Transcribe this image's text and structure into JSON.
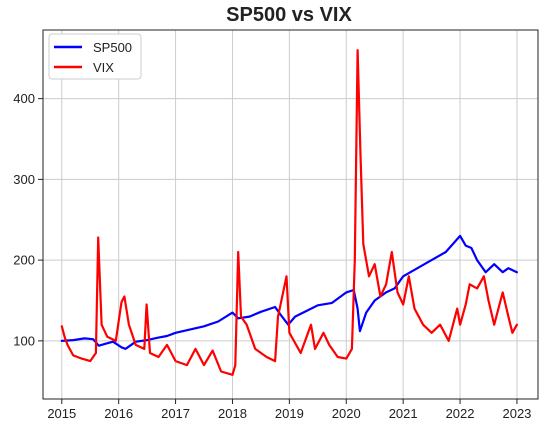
{
  "chart_data": {
    "type": "line",
    "title": "SP500 vs VIX",
    "xlabel": "",
    "ylabel": "",
    "xlim": [
      2014.67,
      2023.37
    ],
    "ylim": [
      28,
      485
    ],
    "x_ticks": [
      "2015",
      "2016",
      "2017",
      "2018",
      "2019",
      "2020",
      "2021",
      "2022",
      "2023"
    ],
    "y_ticks": [
      "100",
      "200",
      "300",
      "400"
    ],
    "grid": true,
    "legend_position": "top-left",
    "series": [
      {
        "name": "SP500",
        "color": "#0000ff",
        "points": [
          [
            2015.0,
            100
          ],
          [
            2015.2,
            101
          ],
          [
            2015.4,
            103
          ],
          [
            2015.55,
            102
          ],
          [
            2015.65,
            94
          ],
          [
            2015.75,
            96
          ],
          [
            2015.9,
            99
          ],
          [
            2016.05,
            92
          ],
          [
            2016.12,
            90
          ],
          [
            2016.3,
            99
          ],
          [
            2016.5,
            101
          ],
          [
            2016.7,
            104
          ],
          [
            2016.85,
            106
          ],
          [
            2017.0,
            110
          ],
          [
            2017.25,
            114
          ],
          [
            2017.5,
            118
          ],
          [
            2017.75,
            124
          ],
          [
            2018.0,
            135
          ],
          [
            2018.1,
            128
          ],
          [
            2018.3,
            130
          ],
          [
            2018.5,
            136
          ],
          [
            2018.75,
            142
          ],
          [
            2018.85,
            132
          ],
          [
            2018.98,
            120
          ],
          [
            2019.1,
            130
          ],
          [
            2019.3,
            137
          ],
          [
            2019.5,
            144
          ],
          [
            2019.75,
            147
          ],
          [
            2020.0,
            160
          ],
          [
            2020.13,
            163
          ],
          [
            2020.2,
            140
          ],
          [
            2020.24,
            112
          ],
          [
            2020.35,
            135
          ],
          [
            2020.5,
            150
          ],
          [
            2020.7,
            160
          ],
          [
            2020.85,
            165
          ],
          [
            2021.0,
            180
          ],
          [
            2021.25,
            190
          ],
          [
            2021.5,
            200
          ],
          [
            2021.75,
            210
          ],
          [
            2022.0,
            230
          ],
          [
            2022.1,
            218
          ],
          [
            2022.2,
            215
          ],
          [
            2022.3,
            200
          ],
          [
            2022.45,
            185
          ],
          [
            2022.6,
            195
          ],
          [
            2022.75,
            185
          ],
          [
            2022.85,
            190
          ],
          [
            2023.0,
            185
          ]
        ]
      },
      {
        "name": "VIX",
        "color": "#ff0000",
        "points": [
          [
            2015.0,
            118
          ],
          [
            2015.05,
            105
          ],
          [
            2015.1,
            95
          ],
          [
            2015.2,
            82
          ],
          [
            2015.35,
            78
          ],
          [
            2015.5,
            75
          ],
          [
            2015.6,
            85
          ],
          [
            2015.64,
            228
          ],
          [
            2015.7,
            120
          ],
          [
            2015.8,
            105
          ],
          [
            2015.95,
            100
          ],
          [
            2016.05,
            148
          ],
          [
            2016.1,
            155
          ],
          [
            2016.18,
            120
          ],
          [
            2016.3,
            95
          ],
          [
            2016.45,
            90
          ],
          [
            2016.49,
            145
          ],
          [
            2016.55,
            85
          ],
          [
            2016.7,
            80
          ],
          [
            2016.85,
            95
          ],
          [
            2017.0,
            75
          ],
          [
            2017.2,
            70
          ],
          [
            2017.35,
            90
          ],
          [
            2017.5,
            70
          ],
          [
            2017.65,
            88
          ],
          [
            2017.8,
            62
          ],
          [
            2018.0,
            58
          ],
          [
            2018.05,
            70
          ],
          [
            2018.1,
            210
          ],
          [
            2018.15,
            130
          ],
          [
            2018.25,
            120
          ],
          [
            2018.4,
            90
          ],
          [
            2018.6,
            80
          ],
          [
            2018.75,
            75
          ],
          [
            2018.8,
            130
          ],
          [
            2018.95,
            180
          ],
          [
            2019.0,
            110
          ],
          [
            2019.2,
            85
          ],
          [
            2019.38,
            120
          ],
          [
            2019.45,
            90
          ],
          [
            2019.6,
            110
          ],
          [
            2019.7,
            95
          ],
          [
            2019.85,
            80
          ],
          [
            2020.0,
            78
          ],
          [
            2020.1,
            90
          ],
          [
            2020.15,
            200
          ],
          [
            2020.2,
            460
          ],
          [
            2020.25,
            330
          ],
          [
            2020.3,
            220
          ],
          [
            2020.4,
            180
          ],
          [
            2020.5,
            195
          ],
          [
            2020.6,
            155
          ],
          [
            2020.7,
            170
          ],
          [
            2020.8,
            210
          ],
          [
            2020.9,
            160
          ],
          [
            2021.0,
            145
          ],
          [
            2021.1,
            180
          ],
          [
            2021.2,
            140
          ],
          [
            2021.35,
            120
          ],
          [
            2021.5,
            110
          ],
          [
            2021.65,
            120
          ],
          [
            2021.8,
            100
          ],
          [
            2021.95,
            140
          ],
          [
            2022.0,
            120
          ],
          [
            2022.1,
            145
          ],
          [
            2022.17,
            170
          ],
          [
            2022.3,
            165
          ],
          [
            2022.42,
            180
          ],
          [
            2022.5,
            150
          ],
          [
            2022.6,
            120
          ],
          [
            2022.75,
            160
          ],
          [
            2022.85,
            130
          ],
          [
            2022.92,
            110
          ],
          [
            2023.0,
            120
          ]
        ]
      }
    ]
  }
}
